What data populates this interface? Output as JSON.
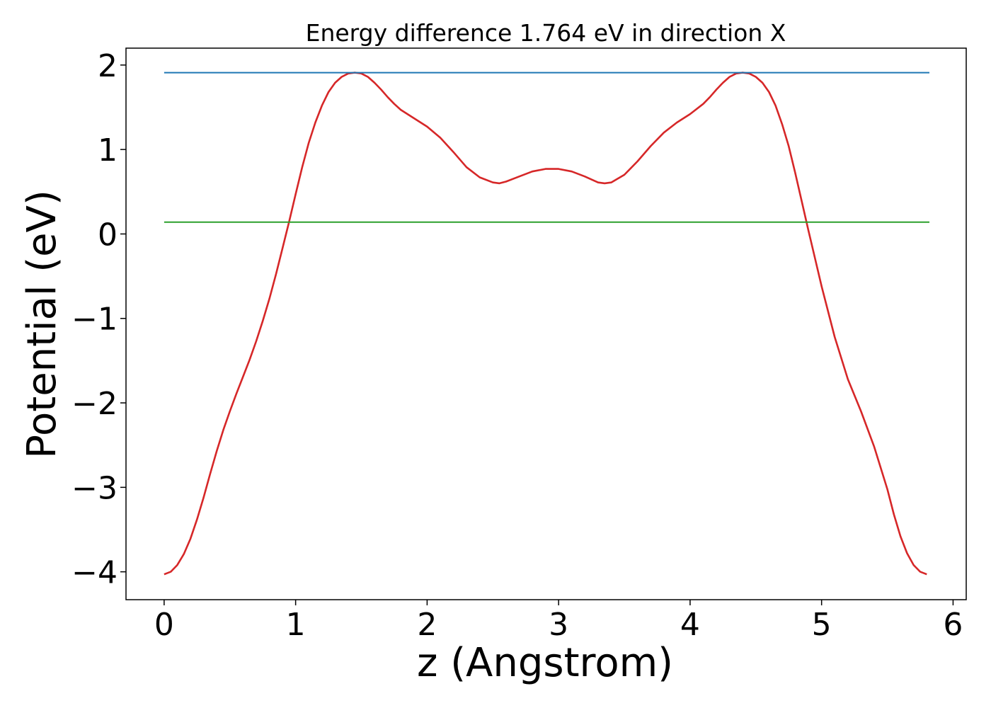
{
  "chart_data": {
    "type": "line",
    "title": "Energy difference 1.764 eV in direction X",
    "xlabel": "z (Angstrom)",
    "ylabel": "Potential (eV)",
    "xlim": [
      -0.29,
      6.1
    ],
    "ylim": [
      -4.33,
      2.2
    ],
    "xticks": [
      0,
      1,
      2,
      3,
      4,
      5,
      6
    ],
    "xtick_labels": [
      "0",
      "1",
      "2",
      "3",
      "4",
      "5",
      "6"
    ],
    "yticks": [
      -4,
      -3,
      -2,
      -1,
      0,
      1,
      2
    ],
    "ytick_labels": [
      "−4",
      "−3",
      "−2",
      "−1",
      "0",
      "1",
      "2"
    ],
    "grid": false,
    "legend": "none",
    "series": [
      {
        "color": "#d62728",
        "x": [
          0.0,
          0.05,
          0.1,
          0.15,
          0.2,
          0.25,
          0.3,
          0.35,
          0.4,
          0.45,
          0.5,
          0.55,
          0.6,
          0.65,
          0.7,
          0.75,
          0.8,
          0.85,
          0.9,
          0.95,
          1.0,
          1.05,
          1.1,
          1.15,
          1.2,
          1.25,
          1.3,
          1.35,
          1.4,
          1.45,
          1.5,
          1.55,
          1.6,
          1.65,
          1.7,
          1.75,
          1.8,
          1.9,
          2.0,
          2.1,
          2.2,
          2.3,
          2.4,
          2.5,
          2.55,
          2.6,
          2.7,
          2.8,
          2.9,
          3.0,
          3.1,
          3.2,
          3.3,
          3.35,
          3.4,
          3.5,
          3.6,
          3.7,
          3.8,
          3.9,
          4.0,
          4.1,
          4.15,
          4.2,
          4.25,
          4.3,
          4.35,
          4.4,
          4.45,
          4.5,
          4.55,
          4.6,
          4.65,
          4.7,
          4.75,
          4.8,
          4.85,
          4.9,
          4.95,
          5.0,
          5.1,
          5.2,
          5.3,
          5.4,
          5.5,
          5.55,
          5.6,
          5.65,
          5.7,
          5.75,
          5.8
        ],
        "y": [
          -4.03,
          -4.0,
          -3.92,
          -3.79,
          -3.61,
          -3.38,
          -3.12,
          -2.84,
          -2.57,
          -2.32,
          -2.1,
          -1.89,
          -1.69,
          -1.49,
          -1.27,
          -1.03,
          -0.77,
          -0.48,
          -0.17,
          0.14,
          0.47,
          0.79,
          1.08,
          1.32,
          1.52,
          1.68,
          1.79,
          1.86,
          1.9,
          1.91,
          1.9,
          1.86,
          1.79,
          1.71,
          1.62,
          1.54,
          1.47,
          1.37,
          1.27,
          1.14,
          0.97,
          0.79,
          0.67,
          0.61,
          0.6,
          0.62,
          0.68,
          0.74,
          0.77,
          0.77,
          0.74,
          0.68,
          0.61,
          0.6,
          0.61,
          0.7,
          0.86,
          1.04,
          1.2,
          1.32,
          1.42,
          1.54,
          1.62,
          1.71,
          1.79,
          1.86,
          1.9,
          1.91,
          1.9,
          1.86,
          1.79,
          1.68,
          1.52,
          1.3,
          1.04,
          0.72,
          0.38,
          0.04,
          -0.29,
          -0.62,
          -1.22,
          -1.72,
          -2.1,
          -2.52,
          -3.02,
          -3.32,
          -3.58,
          -3.78,
          -3.92,
          -4.0,
          -4.03
        ]
      },
      {
        "color": "#1f77b4",
        "x": [
          0.0,
          5.82
        ],
        "y": [
          1.91,
          1.91
        ]
      },
      {
        "color": "#2ca02c",
        "x": [
          0.0,
          5.82
        ],
        "y": [
          0.14,
          0.14
        ]
      }
    ]
  }
}
